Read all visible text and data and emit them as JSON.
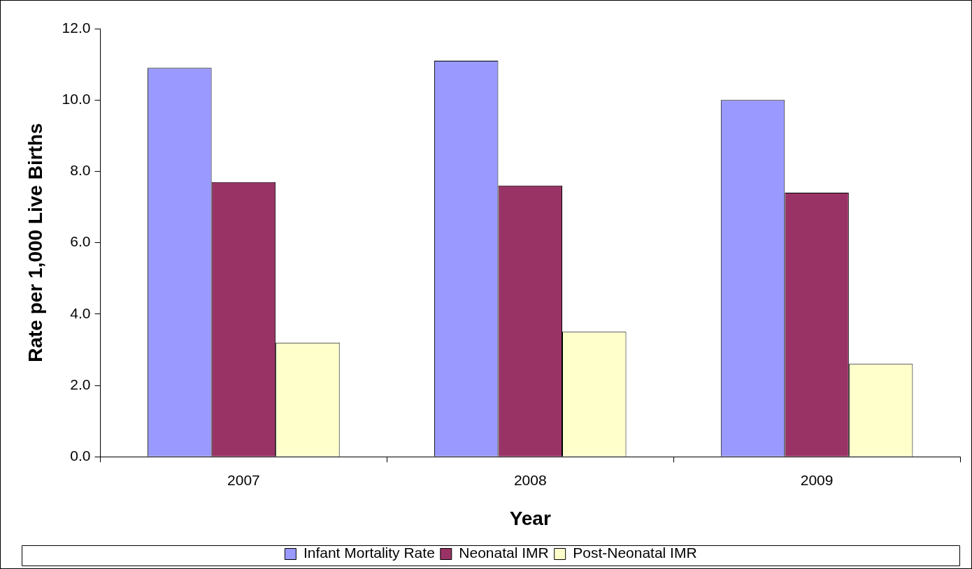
{
  "chart_data": {
    "type": "bar",
    "xlabel": "Year",
    "ylabel": "Rate per 1,000 Live Births",
    "categories": [
      "2007",
      "2008",
      "2009"
    ],
    "series": [
      {
        "name": "Infant Mortality Rate",
        "color": "#9999ff",
        "values": [
          10.9,
          11.1,
          10.0
        ]
      },
      {
        "name": "Neonatal IMR",
        "color": "#993366",
        "values": [
          7.7,
          7.6,
          7.4
        ]
      },
      {
        "name": "Post-Neonatal IMR",
        "color": "#ffffcc",
        "values": [
          3.2,
          3.5,
          2.6
        ]
      }
    ],
    "ylim": [
      0,
      12
    ],
    "yticks": [
      {
        "value": 0,
        "label": "0.0"
      },
      {
        "value": 2,
        "label": "2.0"
      },
      {
        "value": 4,
        "label": "4.0"
      },
      {
        "value": 6,
        "label": "6.0"
      },
      {
        "value": 8,
        "label": "8.0"
      },
      {
        "value": 10,
        "label": "10.0"
      },
      {
        "value": 12,
        "label": "12.0"
      }
    ],
    "grid": false,
    "legend": "bottom"
  }
}
